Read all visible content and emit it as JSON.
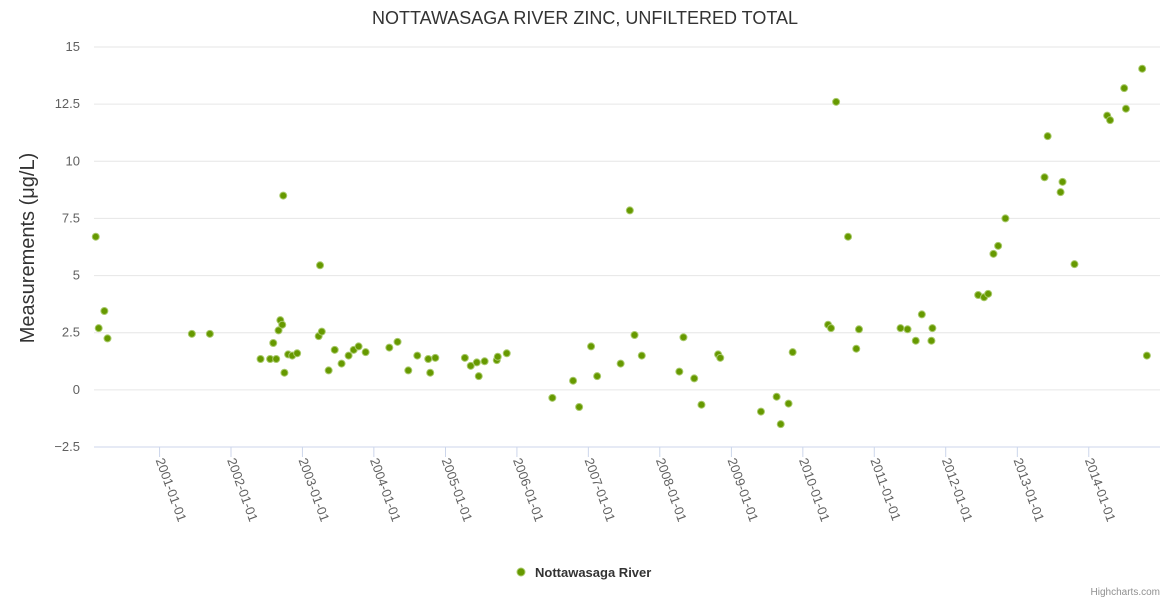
{
  "chart_data": {
    "type": "scatter",
    "title": "NOTTAWASAGA RIVER ZINC, UNFILTERED TOTAL",
    "ylabel": "Measurements (μg/L)",
    "xlabel": "",
    "ylim": [
      -2.5,
      15
    ],
    "yticks": [
      -2.5,
      0,
      2.5,
      5,
      7.5,
      10,
      12.5,
      15
    ],
    "ytick_labels": [
      "−2.5",
      "0",
      "2.5",
      "5",
      "7.5",
      "10",
      "12.5",
      "15"
    ],
    "xlim": [
      "2000-02-01",
      "2014-12-31"
    ],
    "xticks": [
      "2001-01-01",
      "2002-01-01",
      "2003-01-01",
      "2004-01-01",
      "2005-01-01",
      "2006-01-01",
      "2007-01-01",
      "2008-01-01",
      "2009-01-01",
      "2010-01-01",
      "2011-01-01",
      "2012-01-01",
      "2013-01-01",
      "2014-01-01"
    ],
    "grid": true,
    "legend_position": "bottom-center",
    "series": [
      {
        "name": "Nottawasaga River",
        "color": "#669900",
        "marker": "circle",
        "points": [
          [
            "2000-02-10",
            6.7
          ],
          [
            "2000-02-25",
            2.7
          ],
          [
            "2000-03-25",
            3.45
          ],
          [
            "2000-04-10",
            2.25
          ],
          [
            "2001-06-15",
            2.45
          ],
          [
            "2001-09-15",
            2.45
          ],
          [
            "2002-06-01",
            1.35
          ],
          [
            "2002-07-20",
            1.35
          ],
          [
            "2002-08-05",
            2.05
          ],
          [
            "2002-08-20",
            1.35
          ],
          [
            "2002-09-01",
            2.6
          ],
          [
            "2002-09-10",
            3.05
          ],
          [
            "2002-09-20",
            2.85
          ],
          [
            "2002-09-25",
            8.5
          ],
          [
            "2002-10-01",
            0.75
          ],
          [
            "2002-10-20",
            1.55
          ],
          [
            "2002-11-10",
            1.5
          ],
          [
            "2002-12-05",
            1.6
          ],
          [
            "2003-03-25",
            2.35
          ],
          [
            "2003-04-01",
            5.45
          ],
          [
            "2003-04-10",
            2.55
          ],
          [
            "2003-05-15",
            0.85
          ],
          [
            "2003-06-15",
            1.75
          ],
          [
            "2003-07-20",
            1.15
          ],
          [
            "2003-08-25",
            1.5
          ],
          [
            "2003-09-20",
            1.75
          ],
          [
            "2003-10-15",
            1.9
          ],
          [
            "2003-11-20",
            1.65
          ],
          [
            "2004-03-20",
            1.85
          ],
          [
            "2004-05-01",
            2.1
          ],
          [
            "2004-06-25",
            0.85
          ],
          [
            "2004-08-10",
            1.5
          ],
          [
            "2004-10-05",
            1.35
          ],
          [
            "2004-10-15",
            0.75
          ],
          [
            "2004-11-10",
            1.4
          ],
          [
            "2005-04-10",
            1.4
          ],
          [
            "2005-05-10",
            1.05
          ],
          [
            "2005-06-10",
            1.2
          ],
          [
            "2005-06-20",
            0.6
          ],
          [
            "2005-07-20",
            1.25
          ],
          [
            "2005-09-20",
            1.3
          ],
          [
            "2005-09-25",
            1.45
          ],
          [
            "2005-11-10",
            1.6
          ],
          [
            "2006-07-01",
            -0.35
          ],
          [
            "2006-10-15",
            0.4
          ],
          [
            "2006-11-15",
            -0.75
          ],
          [
            "2007-01-15",
            1.9
          ],
          [
            "2007-02-15",
            0.6
          ],
          [
            "2007-06-15",
            1.15
          ],
          [
            "2007-08-01",
            7.85
          ],
          [
            "2007-08-25",
            2.4
          ],
          [
            "2007-10-01",
            1.5
          ],
          [
            "2008-04-10",
            0.8
          ],
          [
            "2008-05-01",
            2.3
          ],
          [
            "2008-06-25",
            0.5
          ],
          [
            "2008-08-01",
            -0.65
          ],
          [
            "2008-10-25",
            1.55
          ],
          [
            "2008-11-05",
            1.4
          ],
          [
            "2009-06-01",
            -0.95
          ],
          [
            "2009-08-20",
            -0.3
          ],
          [
            "2009-09-10",
            -1.5
          ],
          [
            "2009-10-20",
            -0.6
          ],
          [
            "2009-11-10",
            1.65
          ],
          [
            "2010-05-10",
            2.85
          ],
          [
            "2010-05-25",
            2.7
          ],
          [
            "2010-06-20",
            12.6
          ],
          [
            "2010-08-20",
            6.7
          ],
          [
            "2010-10-01",
            1.8
          ],
          [
            "2010-10-15",
            2.65
          ],
          [
            "2011-05-15",
            2.7
          ],
          [
            "2011-06-20",
            2.65
          ],
          [
            "2011-08-01",
            2.15
          ],
          [
            "2011-09-01",
            3.3
          ],
          [
            "2011-10-20",
            2.15
          ],
          [
            "2011-10-25",
            2.7
          ],
          [
            "2012-06-15",
            4.15
          ],
          [
            "2012-07-15",
            4.05
          ],
          [
            "2012-08-05",
            4.2
          ],
          [
            "2012-09-01",
            5.95
          ],
          [
            "2012-09-25",
            6.3
          ],
          [
            "2012-11-01",
            7.5
          ],
          [
            "2013-05-20",
            9.3
          ],
          [
            "2013-06-05",
            11.1
          ],
          [
            "2013-08-10",
            8.65
          ],
          [
            "2013-08-20",
            9.1
          ],
          [
            "2013-10-20",
            5.5
          ],
          [
            "2014-04-05",
            12.0
          ],
          [
            "2014-04-20",
            11.8
          ],
          [
            "2014-07-01",
            13.2
          ],
          [
            "2014-07-10",
            12.3
          ],
          [
            "2014-10-01",
            14.05
          ],
          [
            "2014-10-25",
            1.5
          ]
        ]
      }
    ]
  },
  "credits": "Highcharts.com"
}
